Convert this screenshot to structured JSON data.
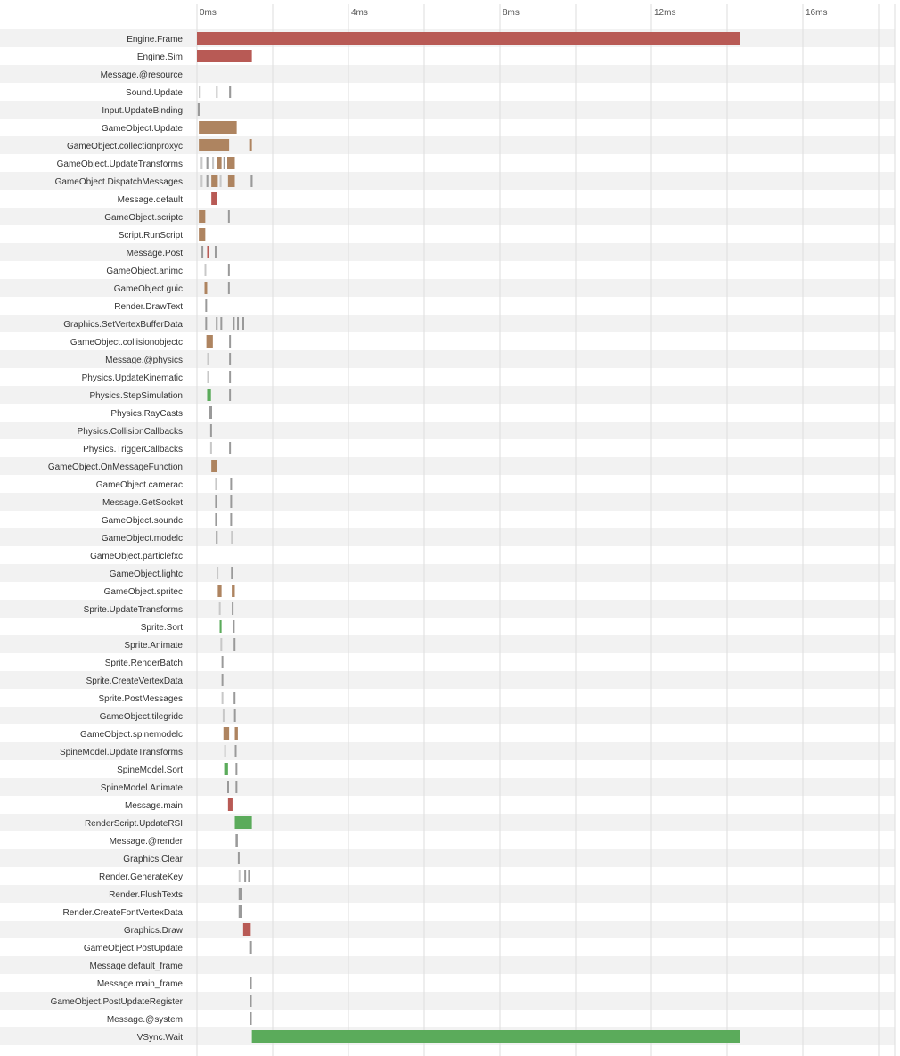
{
  "palette": {
    "red": "#b85a55",
    "brown": "#ae8460",
    "green": "#5bab5b",
    "light": "#c8c8c8",
    "gray": "#9a9a9a",
    "stripe": "#f2f2f2",
    "grid": "#dddddd"
  },
  "chart_data": {
    "type": "gantt",
    "xlim": [
      0,
      18.5
    ],
    "xticks": [
      0,
      4,
      8,
      12,
      16
    ],
    "tick_labels": [
      "0ms",
      "4ms",
      "8ms",
      "12ms",
      "16ms"
    ],
    "grid_step": 2,
    "grid": true,
    "rows": [
      {
        "name": "Engine.Frame",
        "bars": [
          {
            "s": 0,
            "e": 14.35,
            "c": "red"
          }
        ]
      },
      {
        "name": "Engine.Sim",
        "bars": [
          {
            "s": 0,
            "e": 1.45,
            "c": "red"
          }
        ]
      },
      {
        "name": "Message.@resource",
        "bars": []
      },
      {
        "name": "Sound.Update",
        "bars": [
          {
            "s": 0.05,
            "e": 0.1,
            "c": "light"
          },
          {
            "s": 0.5,
            "e": 0.55,
            "c": "light"
          },
          {
            "s": 0.85,
            "e": 0.9,
            "c": "gray"
          }
        ]
      },
      {
        "name": "Input.UpdateBinding",
        "bars": [
          {
            "s": 0.02,
            "e": 0.07,
            "c": "gray"
          }
        ]
      },
      {
        "name": "GameObject.Update",
        "bars": [
          {
            "s": 0.05,
            "e": 1.05,
            "c": "brown"
          }
        ]
      },
      {
        "name": "GameObject.collectionproxyc",
        "bars": [
          {
            "s": 0.05,
            "e": 0.85,
            "c": "brown"
          },
          {
            "s": 1.38,
            "e": 1.45,
            "c": "brown"
          }
        ]
      },
      {
        "name": "GameObject.UpdateTransforms",
        "bars": [
          {
            "s": 0.1,
            "e": 0.15,
            "c": "light"
          },
          {
            "s": 0.25,
            "e": 0.3,
            "c": "gray"
          },
          {
            "s": 0.4,
            "e": 0.45,
            "c": "light"
          },
          {
            "s": 0.52,
            "e": 0.65,
            "c": "brown"
          },
          {
            "s": 0.7,
            "e": 0.75,
            "c": "gray"
          },
          {
            "s": 0.8,
            "e": 1.0,
            "c": "brown"
          }
        ]
      },
      {
        "name": "GameObject.DispatchMessages",
        "bars": [
          {
            "s": 0.1,
            "e": 0.15,
            "c": "light"
          },
          {
            "s": 0.25,
            "e": 0.3,
            "c": "gray"
          },
          {
            "s": 0.38,
            "e": 0.55,
            "c": "brown"
          },
          {
            "s": 0.6,
            "e": 0.65,
            "c": "light"
          },
          {
            "s": 0.82,
            "e": 1.0,
            "c": "brown"
          },
          {
            "s": 1.42,
            "e": 1.47,
            "c": "gray"
          }
        ]
      },
      {
        "name": "Message.default",
        "bars": [
          {
            "s": 0.38,
            "e": 0.52,
            "c": "red"
          }
        ]
      },
      {
        "name": "GameObject.scriptc",
        "bars": [
          {
            "s": 0.05,
            "e": 0.22,
            "c": "brown"
          },
          {
            "s": 0.82,
            "e": 0.86,
            "c": "gray"
          }
        ]
      },
      {
        "name": "Script.RunScript",
        "bars": [
          {
            "s": 0.05,
            "e": 0.22,
            "c": "brown"
          }
        ]
      },
      {
        "name": "Message.Post",
        "bars": [
          {
            "s": 0.12,
            "e": 0.16,
            "c": "gray"
          },
          {
            "s": 0.27,
            "e": 0.31,
            "c": "red"
          },
          {
            "s": 0.47,
            "e": 0.51,
            "c": "gray"
          }
        ]
      },
      {
        "name": "GameObject.animc",
        "bars": [
          {
            "s": 0.2,
            "e": 0.24,
            "c": "light"
          },
          {
            "s": 0.82,
            "e": 0.86,
            "c": "gray"
          }
        ]
      },
      {
        "name": "GameObject.guic",
        "bars": [
          {
            "s": 0.2,
            "e": 0.27,
            "c": "brown"
          },
          {
            "s": 0.82,
            "e": 0.86,
            "c": "gray"
          }
        ]
      },
      {
        "name": "Render.DrawText",
        "bars": [
          {
            "s": 0.22,
            "e": 0.26,
            "c": "gray"
          }
        ]
      },
      {
        "name": "Graphics.SetVertexBufferData",
        "bars": [
          {
            "s": 0.22,
            "e": 0.26,
            "c": "gray"
          },
          {
            "s": 0.5,
            "e": 0.54,
            "c": "gray"
          },
          {
            "s": 0.62,
            "e": 0.66,
            "c": "gray"
          },
          {
            "s": 0.95,
            "e": 0.99,
            "c": "gray"
          },
          {
            "s": 1.06,
            "e": 1.1,
            "c": "gray"
          },
          {
            "s": 1.2,
            "e": 1.24,
            "c": "gray"
          }
        ]
      },
      {
        "name": "GameObject.collisionobjectc",
        "bars": [
          {
            "s": 0.25,
            "e": 0.42,
            "c": "brown"
          },
          {
            "s": 0.85,
            "e": 0.89,
            "c": "gray"
          }
        ]
      },
      {
        "name": "Message.@physics",
        "bars": [
          {
            "s": 0.27,
            "e": 0.31,
            "c": "light"
          },
          {
            "s": 0.85,
            "e": 0.89,
            "c": "gray"
          }
        ]
      },
      {
        "name": "Physics.UpdateKinematic",
        "bars": [
          {
            "s": 0.27,
            "e": 0.31,
            "c": "light"
          },
          {
            "s": 0.85,
            "e": 0.89,
            "c": "gray"
          }
        ]
      },
      {
        "name": "Physics.StepSimulation",
        "bars": [
          {
            "s": 0.27,
            "e": 0.37,
            "c": "green"
          },
          {
            "s": 0.85,
            "e": 0.89,
            "c": "gray"
          }
        ]
      },
      {
        "name": "Physics.RayCasts",
        "bars": [
          {
            "s": 0.32,
            "e": 0.4,
            "c": "gray"
          }
        ]
      },
      {
        "name": "Physics.CollisionCallbacks",
        "bars": [
          {
            "s": 0.35,
            "e": 0.39,
            "c": "gray"
          }
        ]
      },
      {
        "name": "Physics.TriggerCallbacks",
        "bars": [
          {
            "s": 0.35,
            "e": 0.39,
            "c": "light"
          },
          {
            "s": 0.85,
            "e": 0.89,
            "c": "gray"
          }
        ]
      },
      {
        "name": "GameObject.OnMessageFunction",
        "bars": [
          {
            "s": 0.38,
            "e": 0.52,
            "c": "brown"
          }
        ]
      },
      {
        "name": "GameObject.camerac",
        "bars": [
          {
            "s": 0.48,
            "e": 0.52,
            "c": "light"
          },
          {
            "s": 0.88,
            "e": 0.92,
            "c": "gray"
          }
        ]
      },
      {
        "name": "Message.GetSocket",
        "bars": [
          {
            "s": 0.48,
            "e": 0.52,
            "c": "gray"
          },
          {
            "s": 0.88,
            "e": 0.92,
            "c": "gray"
          }
        ]
      },
      {
        "name": "GameObject.soundc",
        "bars": [
          {
            "s": 0.48,
            "e": 0.52,
            "c": "gray"
          },
          {
            "s": 0.88,
            "e": 0.92,
            "c": "gray"
          }
        ]
      },
      {
        "name": "GameObject.modelc",
        "bars": [
          {
            "s": 0.5,
            "e": 0.54,
            "c": "gray"
          },
          {
            "s": 0.9,
            "e": 0.94,
            "c": "light"
          }
        ]
      },
      {
        "name": "GameObject.particlefxc",
        "bars": []
      },
      {
        "name": "GameObject.lightc",
        "bars": [
          {
            "s": 0.52,
            "e": 0.56,
            "c": "light"
          },
          {
            "s": 0.9,
            "e": 0.94,
            "c": "gray"
          }
        ]
      },
      {
        "name": "GameObject.spritec",
        "bars": [
          {
            "s": 0.55,
            "e": 0.65,
            "c": "brown"
          },
          {
            "s": 0.92,
            "e": 1.0,
            "c": "brown"
          }
        ]
      },
      {
        "name": "Sprite.UpdateTransforms",
        "bars": [
          {
            "s": 0.58,
            "e": 0.62,
            "c": "light"
          },
          {
            "s": 0.92,
            "e": 0.96,
            "c": "gray"
          }
        ]
      },
      {
        "name": "Sprite.Sort",
        "bars": [
          {
            "s": 0.6,
            "e": 0.65,
            "c": "green"
          },
          {
            "s": 0.95,
            "e": 0.99,
            "c": "gray"
          }
        ]
      },
      {
        "name": "Sprite.Animate",
        "bars": [
          {
            "s": 0.62,
            "e": 0.66,
            "c": "light"
          },
          {
            "s": 0.97,
            "e": 1.01,
            "c": "gray"
          }
        ]
      },
      {
        "name": "Sprite.RenderBatch",
        "bars": [
          {
            "s": 0.65,
            "e": 0.69,
            "c": "gray"
          }
        ]
      },
      {
        "name": "Sprite.CreateVertexData",
        "bars": [
          {
            "s": 0.65,
            "e": 0.69,
            "c": "gray"
          }
        ]
      },
      {
        "name": "Sprite.PostMessages",
        "bars": [
          {
            "s": 0.65,
            "e": 0.69,
            "c": "light"
          },
          {
            "s": 0.97,
            "e": 1.01,
            "c": "gray"
          }
        ]
      },
      {
        "name": "GameObject.tilegridc",
        "bars": [
          {
            "s": 0.68,
            "e": 0.72,
            "c": "light"
          },
          {
            "s": 0.98,
            "e": 1.02,
            "c": "gray"
          }
        ]
      },
      {
        "name": "GameObject.spinemodelc",
        "bars": [
          {
            "s": 0.7,
            "e": 0.85,
            "c": "brown"
          },
          {
            "s": 1.0,
            "e": 1.08,
            "c": "brown"
          }
        ]
      },
      {
        "name": "SpineModel.UpdateTransforms",
        "bars": [
          {
            "s": 0.72,
            "e": 0.76,
            "c": "light"
          },
          {
            "s": 1.0,
            "e": 1.04,
            "c": "gray"
          }
        ]
      },
      {
        "name": "SpineModel.Sort",
        "bars": [
          {
            "s": 0.72,
            "e": 0.82,
            "c": "green"
          },
          {
            "s": 1.02,
            "e": 1.06,
            "c": "gray"
          }
        ]
      },
      {
        "name": "SpineModel.Animate",
        "bars": [
          {
            "s": 0.8,
            "e": 0.84,
            "c": "gray"
          },
          {
            "s": 1.02,
            "e": 1.06,
            "c": "gray"
          }
        ]
      },
      {
        "name": "Message.main",
        "bars": [
          {
            "s": 0.82,
            "e": 0.94,
            "c": "red"
          }
        ]
      },
      {
        "name": "RenderScript.UpdateRSI",
        "bars": [
          {
            "s": 1.0,
            "e": 1.45,
            "c": "green"
          }
        ]
      },
      {
        "name": "Message.@render",
        "bars": [
          {
            "s": 1.02,
            "e": 1.08,
            "c": "gray"
          }
        ]
      },
      {
        "name": "Graphics.Clear",
        "bars": [
          {
            "s": 1.08,
            "e": 1.12,
            "c": "gray"
          }
        ]
      },
      {
        "name": "Render.GenerateKey",
        "bars": [
          {
            "s": 1.1,
            "e": 1.14,
            "c": "light"
          },
          {
            "s": 1.25,
            "e": 1.29,
            "c": "gray"
          },
          {
            "s": 1.35,
            "e": 1.39,
            "c": "gray"
          }
        ]
      },
      {
        "name": "Render.FlushTexts",
        "bars": [
          {
            "s": 1.1,
            "e": 1.2,
            "c": "gray"
          }
        ]
      },
      {
        "name": "Render.CreateFontVertexData",
        "bars": [
          {
            "s": 1.1,
            "e": 1.2,
            "c": "gray"
          }
        ]
      },
      {
        "name": "Graphics.Draw",
        "bars": [
          {
            "s": 1.22,
            "e": 1.42,
            "c": "red"
          }
        ]
      },
      {
        "name": "GameObject.PostUpdate",
        "bars": [
          {
            "s": 1.38,
            "e": 1.45,
            "c": "gray"
          }
        ]
      },
      {
        "name": "Message.default_frame",
        "bars": []
      },
      {
        "name": "Message.main_frame",
        "bars": [
          {
            "s": 1.4,
            "e": 1.44,
            "c": "gray"
          }
        ]
      },
      {
        "name": "GameObject.PostUpdateRegister",
        "bars": [
          {
            "s": 1.4,
            "e": 1.44,
            "c": "gray"
          }
        ]
      },
      {
        "name": "Message.@system",
        "bars": [
          {
            "s": 1.4,
            "e": 1.44,
            "c": "gray"
          }
        ]
      },
      {
        "name": "VSync.Wait",
        "bars": [
          {
            "s": 1.45,
            "e": 14.35,
            "c": "green"
          }
        ]
      }
    ]
  }
}
